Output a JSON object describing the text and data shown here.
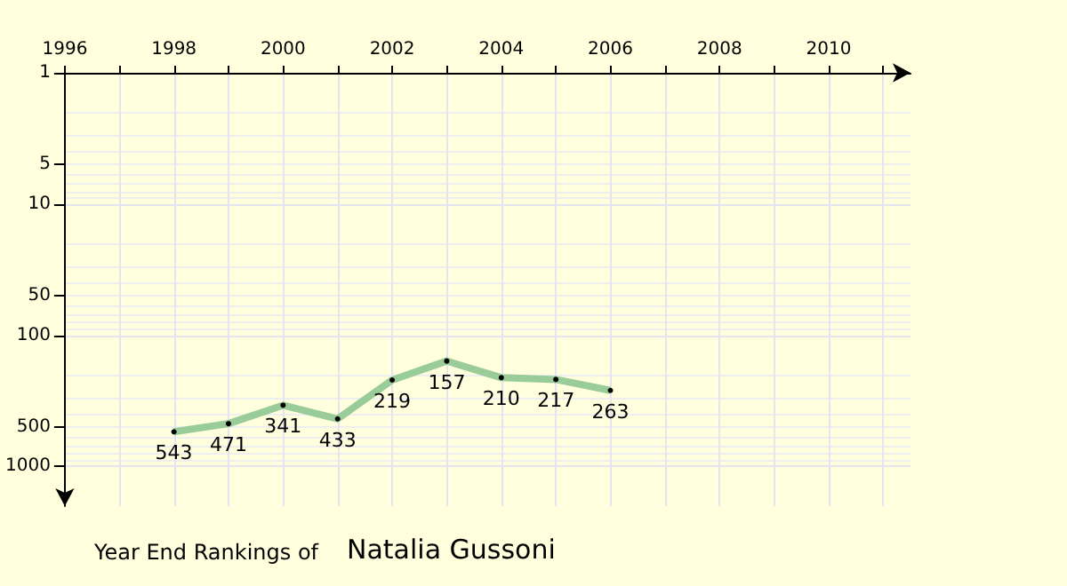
{
  "chart_data": {
    "type": "line",
    "title": "Year End Rankings of",
    "subtitle": "Natalia Gussoni",
    "x": [
      1998,
      1999,
      2000,
      2001,
      2002,
      2003,
      2004,
      2005,
      2006
    ],
    "series": [
      {
        "color": "#99cc99",
        "values": [
          543,
          471,
          341,
          433,
          219,
          157,
          210,
          217,
          263
        ]
      }
    ],
    "data_labels": true,
    "marker": "circle",
    "line_style": "solid",
    "log": "y",
    "grid": true,
    "xlim": [
      1996,
      2011.5
    ],
    "xticks": [
      1996,
      {
        "value": 1997,
        "label": null
      },
      1998,
      {
        "value": 1999,
        "label": null
      },
      2000,
      {
        "value": 2001,
        "label": null
      },
      2002,
      {
        "value": 2003,
        "label": null
      },
      2004,
      {
        "value": 2005,
        "label": null
      },
      2006,
      {
        "value": 2007,
        "label": null
      },
      2008,
      {
        "value": 2009,
        "label": null
      },
      2010,
      {
        "value": 2011,
        "label": null
      }
    ],
    "ylim": [
      2000,
      1
    ],
    "yticks": [
      1,
      5,
      10,
      50,
      100,
      500,
      1000
    ]
  }
}
